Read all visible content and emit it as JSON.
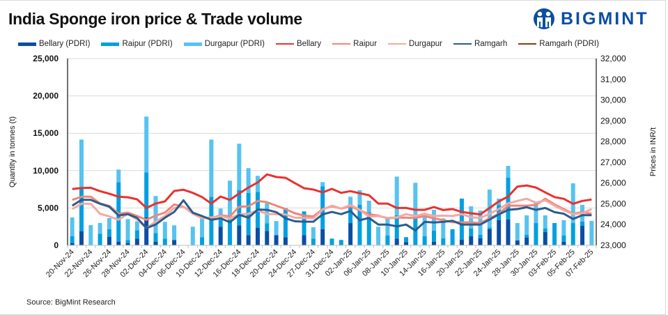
{
  "title": "India Sponge iron price & Trade volume",
  "logo_text": "BIGMINT",
  "source": "Source: BigMint Research",
  "chart_data": {
    "type": "bar+line",
    "title": "India Sponge iron price & Trade volume",
    "ylabel_left": "Quantity in tonnes (t)",
    "ylabel_right": "Prices in INR/t",
    "ylim_left": [
      0,
      25000
    ],
    "ylim_right": [
      23000,
      32000
    ],
    "yticks_left": [
      "0",
      "5,000",
      "10,000",
      "15,000",
      "20,000",
      "25,000"
    ],
    "yticks_right": [
      "23,000",
      "24,000",
      "25,000",
      "26,000",
      "27,000",
      "28,000",
      "29,000",
      "30,000",
      "31,000",
      "32,000"
    ],
    "grid": true,
    "legend_position": "top",
    "categories": [
      "20-Nov-24",
      "",
      "22-Nov-24",
      "",
      "26-Nov-24",
      "",
      "28-Nov-24",
      "",
      "02-Dec-24",
      "",
      "04-Dec-24",
      "",
      "06-Dec-24",
      "",
      "10-Dec-24",
      "",
      "12-Dec-24",
      "",
      "16-Dec-24",
      "",
      "18-Dec-24",
      "",
      "20-Dec-24",
      "",
      "24-Dec-24",
      "",
      "27-Dec-24",
      "",
      "31-Dec-24",
      "",
      "02-Jan-25",
      "",
      "06-Jan-25",
      "",
      "08-Jan-25",
      "",
      "10-Jan-25",
      "",
      "14-Jan-25",
      "",
      "16-Jan-25",
      "",
      "20-Jan-25",
      "",
      "22-Jan-25",
      "",
      "24-Jan-25",
      "",
      "28-Jan-25",
      "",
      "30-Jan-25",
      "",
      "03-Feb-25",
      "",
      "05-Feb-25",
      "",
      "07-Feb-25"
    ],
    "bar_series": [
      {
        "name": "Bellary (PDRI)",
        "color": "#0b4ea2",
        "values": [
          280,
          1870,
          0,
          0,
          1120,
          500,
          280,
          900,
          3730,
          470,
          0,
          720,
          0,
          0,
          0,
          0,
          2490,
          0,
          2680,
          1370,
          2330,
          1930,
          1370,
          1090,
          0,
          1370,
          0,
          2170,
          0,
          0,
          2980,
          0,
          0,
          0,
          0,
          900,
          440,
          0,
          0,
          470,
          0,
          0,
          740,
          1210,
          930,
          2150,
          3390,
          3450,
          650,
          1030,
          0,
          1770,
          0,
          470,
          0,
          2610,
          0
        ]
      },
      {
        "name": "Raipur (PDRI)",
        "color": "#00a0e0",
        "values": [
          930,
          5910,
          0,
          1560,
          1030,
          7960,
          440,
          1100,
          6040,
          1180,
          900,
          0,
          0,
          0,
          1090,
          6500,
          930,
          3420,
          4690,
          5630,
          4830,
          1030,
          0,
          3890,
          0,
          3170,
          900,
          5740,
          900,
          720,
          2520,
          5410,
          4450,
          0,
          1330,
          3110,
          650,
          3600,
          1210,
          1490,
          930,
          2150,
          5510,
          1060,
          470,
          250,
          2010,
          5600,
          0,
          370,
          2980,
          470,
          2980,
          840,
          2980,
          560,
          0
        ]
      },
      {
        "name": "Durgapur (PDRI)",
        "color": "#56c3f0",
        "values": [
          2520,
          6370,
          2700,
          1430,
          1490,
          1680,
          2800,
          1210,
          7460,
          4950,
          2240,
          1960,
          0,
          2490,
          2490,
          7650,
          1500,
          5230,
          6230,
          3330,
          2140,
          2670,
          1880,
          0,
          0,
          0,
          1520,
          550,
          0,
          0,
          1000,
          1960,
          1520,
          2490,
          2280,
          5190,
          0,
          4770,
          2710,
          2800,
          2670,
          0,
          0,
          2950,
          3260,
          5060,
          850,
          1580,
          2330,
          2610,
          2800,
          1770,
          0,
          2050,
          5320,
          2240,
          3260
        ]
      }
    ],
    "line_series": [
      {
        "name": "Bellary",
        "color": "#e8322f",
        "values": [
          25710,
          25760,
          25775,
          25610,
          25490,
          25340,
          25315,
          25215,
          24800,
          25010,
          25115,
          25620,
          25675,
          25530,
          25325,
          25010,
          25350,
          25190,
          25500,
          25785,
          26030,
          26420,
          26290,
          26255,
          26000,
          25750,
          25685,
          25550,
          25720,
          25530,
          25610,
          25510,
          25415,
          25010,
          25010,
          24800,
          24800,
          24710,
          24710,
          24845,
          24700,
          24745,
          24610,
          24545,
          24490,
          24800,
          25115,
          25350,
          25830,
          25885,
          25785,
          25550,
          25325,
          25240,
          25000,
          25140,
          25205
        ]
      },
      {
        "name": "Raipur",
        "color": "#f0857a",
        "values": [
          25190,
          25340,
          25340,
          25020,
          24900,
          24520,
          24580,
          24410,
          24230,
          24430,
          24580,
          24970,
          24860,
          24580,
          24320,
          24320,
          24450,
          24390,
          24860,
          24880,
          25140,
          25080,
          24910,
          24745,
          24545,
          24430,
          24390,
          24745,
          24880,
          24770,
          24880,
          24690,
          24500,
          24430,
          24300,
          24330,
          24330,
          24320,
          24410,
          24300,
          24210,
          24110,
          24110,
          24100,
          24075,
          24300,
          24520,
          24910,
          24910,
          24910,
          24945,
          25245,
          24970,
          24745,
          24520,
          24600,
          24520
        ]
      },
      {
        "name": "Durgapur",
        "color": "#f4a9a3",
        "values": [
          24745,
          25000,
          25000,
          24520,
          24390,
          24230,
          24520,
          24240,
          23830,
          24150,
          24410,
          24800,
          24860,
          24520,
          24300,
          24350,
          24410,
          24300,
          24490,
          24520,
          24690,
          24500,
          24500,
          24490,
          24330,
          24320,
          24300,
          24720,
          24910,
          24770,
          24940,
          24720,
          24380,
          24410,
          24320,
          24350,
          24500,
          24410,
          24520,
          24410,
          24430,
          24410,
          24500,
          24350,
          24320,
          24520,
          24745,
          25020,
          25140,
          25245,
          25055,
          25170,
          24910,
          24690,
          24500,
          24545,
          24745
        ]
      },
      {
        "name": "Ramgarh",
        "color": "#2a5d8e",
        "values": [
          24910,
          25190,
          25190,
          25000,
          24860,
          24440,
          24500,
          24320,
          23830,
          24000,
          24330,
          24610,
          25170,
          24570,
          24410,
          24230,
          24300,
          24110,
          24470,
          24330,
          24720,
          24710,
          24600,
          24300,
          24160,
          24140,
          24140,
          24490,
          24610,
          24500,
          24655,
          24210,
          24320,
          24000,
          24000,
          23910,
          24000,
          23715,
          24130,
          24100,
          24130,
          24185,
          24000,
          24000,
          24000,
          24240,
          24490,
          24710,
          24745,
          24835,
          24710,
          24800,
          24600,
          24520,
          24265,
          24455,
          24455
        ]
      },
      {
        "name": "Ramgarh (PDRI)",
        "color": "#8b3a10",
        "values": []
      }
    ]
  }
}
